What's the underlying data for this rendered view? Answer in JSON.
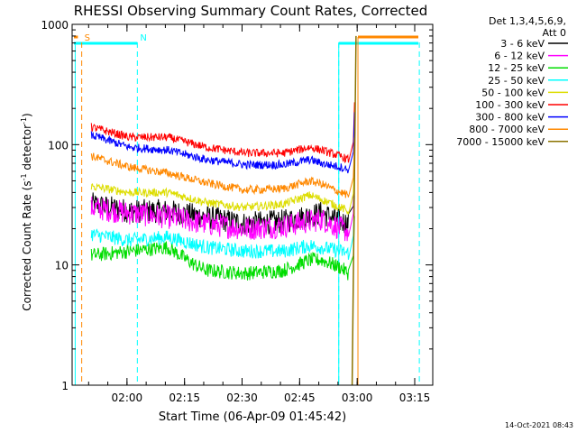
{
  "chart_data": {
    "type": "line",
    "title": "RHESSI Observing Summary Count Rates, Corrected",
    "xlabel": "Start Time (06-Apr-09 01:45:42)",
    "ylabel_main": "Corrected Count Rate (s",
    "ylabel_sup1": "-1",
    "ylabel_mid": " detector",
    "ylabel_sup2": "-1",
    "ylabel_end": ")",
    "y_scale": "log",
    "ylim": [
      1,
      1000
    ],
    "y_ticks": [
      1,
      10,
      100,
      1000
    ],
    "y_tick_labels": [
      "1",
      "10",
      "100",
      "1000"
    ],
    "x_range_minutes": [
      0,
      94
    ],
    "x_ticks_minutes": [
      14.3,
      29.3,
      44.3,
      59.3,
      74.3,
      89.3
    ],
    "x_tick_labels": [
      "02:00",
      "02:15",
      "02:30",
      "02:45",
      "03:00",
      "03:15"
    ],
    "legend_title": "Det 1,3,4,5,6,9,",
    "legend_subtitle": "Att 0",
    "legend_position": "right",
    "series": [
      {
        "name": "3 - 6 keV",
        "color": "#000000",
        "x": [
          5,
          15,
          25,
          35,
          45,
          55,
          65,
          70,
          72
        ],
        "y": [
          32,
          28,
          28,
          25,
          22,
          23,
          27,
          23,
          22
        ]
      },
      {
        "name": "6 - 12 keV",
        "color": "#ff00ff",
        "x": [
          5,
          15,
          25,
          35,
          45,
          55,
          65,
          70,
          72
        ],
        "y": [
          30,
          27,
          25,
          22,
          20,
          21,
          24,
          20,
          19
        ]
      },
      {
        "name": "12 - 25 keV",
        "color": "#00dd00",
        "x": [
          5,
          15,
          25,
          32,
          35,
          45,
          55,
          62,
          65,
          70,
          72
        ],
        "y": [
          12,
          13,
          14,
          10,
          9,
          8.5,
          9,
          11,
          11,
          9.5,
          8.5
        ]
      },
      {
        "name": "25 - 50 keV",
        "color": "#00ffff",
        "x": [
          5,
          15,
          25,
          35,
          45,
          55,
          62,
          65,
          70,
          72
        ],
        "y": [
          18,
          16,
          17,
          14,
          13,
          13,
          14.5,
          14,
          13,
          12.5
        ]
      },
      {
        "name": "50 - 100 keV",
        "color": "#dddd00",
        "x": [
          5,
          15,
          25,
          35,
          45,
          55,
          62,
          65,
          70,
          72
        ],
        "y": [
          45,
          40,
          40,
          33,
          30,
          32,
          38,
          35,
          30,
          28
        ]
      },
      {
        "name": "100 - 300 keV",
        "color": "#ff0000",
        "x": [
          5,
          15,
          25,
          35,
          45,
          55,
          62,
          65,
          70,
          72
        ],
        "y": [
          140,
          115,
          115,
          95,
          85,
          85,
          95,
          90,
          80,
          75
        ]
      },
      {
        "name": "300 - 800 keV",
        "color": "#0000ff",
        "x": [
          5,
          15,
          25,
          35,
          45,
          55,
          62,
          65,
          70,
          72
        ],
        "y": [
          120,
          95,
          90,
          75,
          68,
          68,
          75,
          70,
          65,
          62
        ]
      },
      {
        "name": "800 - 7000 keV",
        "color": "#ff8800",
        "x": [
          5,
          15,
          25,
          35,
          45,
          55,
          62,
          65,
          70,
          72
        ],
        "y": [
          80,
          65,
          58,
          48,
          42,
          43,
          50,
          47,
          40,
          38
        ]
      },
      {
        "name": "7000 - 15000 keV",
        "color": "#8b7300",
        "x": [
          73,
          74
        ],
        "y": [
          1,
          800
        ]
      }
    ],
    "markers": [
      {
        "label": "S",
        "color": "#ff8800",
        "x": 2.5
      },
      {
        "label": "N",
        "color": "#00ffff",
        "x": 17
      }
    ],
    "timestamp": "14-Oct-2021 08:43"
  }
}
